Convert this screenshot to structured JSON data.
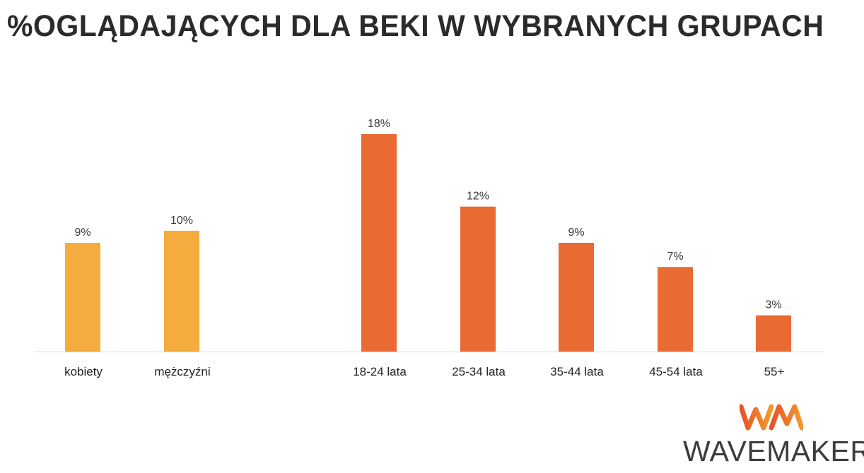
{
  "title": "%OGLĄDAJĄCYCH DLA BEKI W WYBRANYCH GRUPACH",
  "chart_data": {
    "type": "bar",
    "categories": [
      "kobiety",
      "mężczyźni",
      "18-24 lata",
      "25-34 lata",
      "35-44 lata",
      "45-54 lata",
      "55+"
    ],
    "values": [
      9,
      10,
      18,
      12,
      9,
      7,
      3
    ],
    "value_labels": [
      "9%",
      "10%",
      "18%",
      "12%",
      "9%",
      "7%",
      "3%"
    ],
    "groups": [
      {
        "categories": [
          "kobiety",
          "mężczyźni"
        ],
        "color": "#F5AC3E"
      },
      {
        "categories": [
          "18-24 lata",
          "25-34 lata",
          "35-44 lata",
          "45-54 lata",
          "55+"
        ],
        "color": "#EA6A33"
      }
    ],
    "unit": "%",
    "ylim": [
      0,
      18
    ],
    "grid": false,
    "legend": "none",
    "baseline_color": "#d9d9d9"
  },
  "logo": {
    "text": "WAVEMAKER",
    "mark_colors": [
      "#E8522B",
      "#F39A2C"
    ]
  }
}
